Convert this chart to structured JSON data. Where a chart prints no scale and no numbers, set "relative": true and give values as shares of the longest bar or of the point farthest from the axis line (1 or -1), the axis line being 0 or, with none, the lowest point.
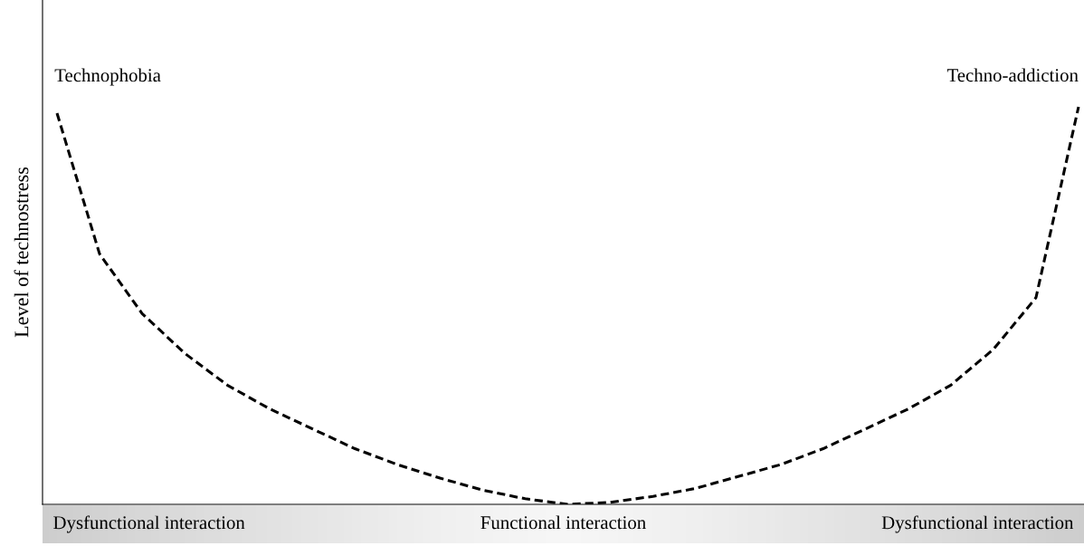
{
  "chart_data": {
    "type": "line",
    "relative": true,
    "ylabel": "Level of technostress",
    "categories": [
      null,
      null,
      null,
      null,
      null,
      null,
      null,
      null,
      null,
      null,
      null,
      null,
      null,
      null,
      null,
      null,
      null,
      null,
      null,
      null,
      null,
      null,
      null,
      null,
      null
    ],
    "series": [
      {
        "color": "#000000",
        "values": [
          0.984,
          0.63,
          0.48,
          0.38,
          0.3,
          0.24,
          0.19,
          0.14,
          0.1,
          0.066,
          0.036,
          0.014,
          0,
          0.005,
          0.02,
          0.04,
          0.07,
          0.1,
          0.14,
          0.19,
          0.24,
          0.3,
          0.39,
          0.52,
          1
        ]
      }
    ],
    "line_style": "dashed",
    "marker": "none",
    "legend": false,
    "tick_labels": false,
    "annotations": [
      "Technophobia",
      "Techno-addiction",
      "Dysfunctional interaction",
      "Functional interaction",
      "Dysfunctional interaction"
    ]
  }
}
